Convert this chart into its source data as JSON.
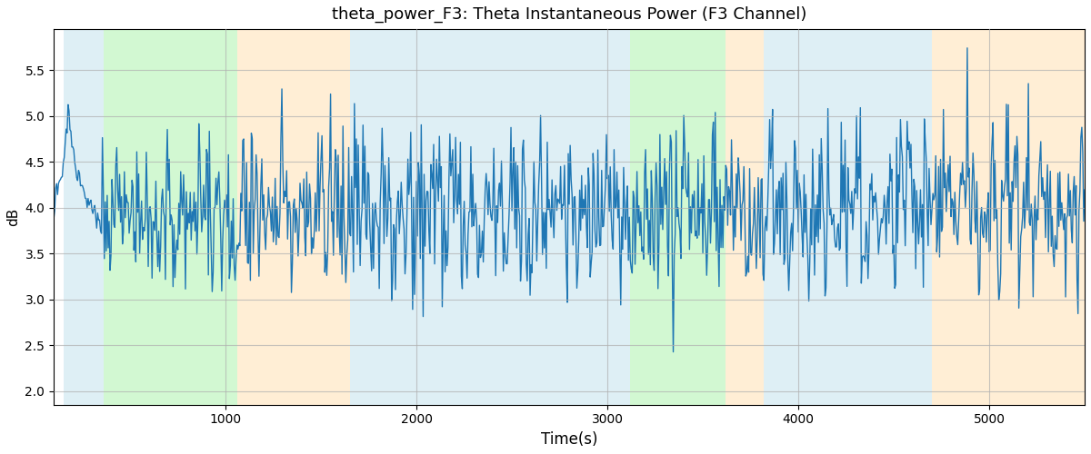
{
  "title": "theta_power_F3: Theta Instantaneous Power (F3 Channel)",
  "xlabel": "Time(s)",
  "ylabel": "dB",
  "ylim": [
    1.85,
    5.95
  ],
  "xlim": [
    100,
    5500
  ],
  "figsize": [
    12.0,
    5.0
  ],
  "dpi": 100,
  "line_color": "#1f77b4",
  "line_width": 1.0,
  "grid_color": "#b0b0b0",
  "bands": [
    {
      "xmin": 150,
      "xmax": 360,
      "color": "#add8e6",
      "alpha": 0.4
    },
    {
      "xmin": 360,
      "xmax": 1060,
      "color": "#90ee90",
      "alpha": 0.4
    },
    {
      "xmin": 1060,
      "xmax": 1650,
      "color": "#ffdead",
      "alpha": 0.5
    },
    {
      "xmin": 1650,
      "xmax": 3120,
      "color": "#add8e6",
      "alpha": 0.4
    },
    {
      "xmin": 3120,
      "xmax": 3620,
      "color": "#90ee90",
      "alpha": 0.4
    },
    {
      "xmin": 3620,
      "xmax": 3820,
      "color": "#ffdead",
      "alpha": 0.5
    },
    {
      "xmin": 3820,
      "xmax": 4700,
      "color": "#add8e6",
      "alpha": 0.4
    },
    {
      "xmin": 4700,
      "xmax": 5500,
      "color": "#ffdead",
      "alpha": 0.5
    }
  ],
  "x_start": 100,
  "x_end": 5500,
  "n_points": 1081,
  "seed": 137
}
